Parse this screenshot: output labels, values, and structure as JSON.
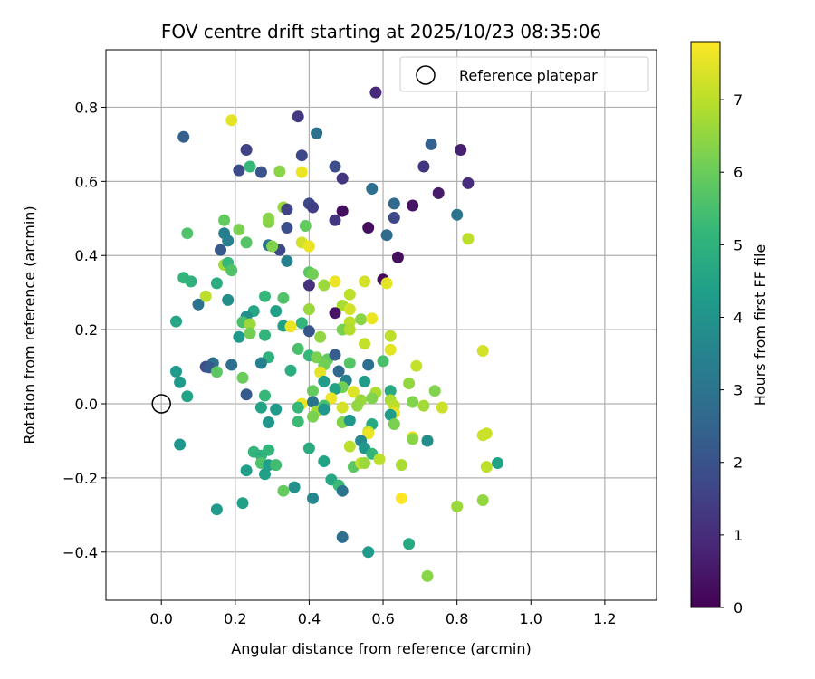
{
  "chart_data": {
    "type": "scatter",
    "title": "FOV centre drift starting at 2025/10/23 08:35:06",
    "xlabel": "Angular distance from reference (arcmin)",
    "ylabel": "Rotation from reference (arcmin)",
    "xlim": [
      -0.15,
      1.34
    ],
    "ylim": [
      -0.53,
      0.955
    ],
    "xticks": [
      0.0,
      0.2,
      0.4,
      0.6,
      0.8,
      1.0,
      1.2
    ],
    "xtick_labels": [
      "0.0",
      "0.2",
      "0.4",
      "0.6",
      "0.8",
      "1.0",
      "1.2"
    ],
    "yticks": [
      -0.4,
      -0.2,
      0.0,
      0.2,
      0.4,
      0.6,
      0.8
    ],
    "ytick_labels": [
      "−0.4",
      "−0.2",
      "0.0",
      "0.2",
      "0.4",
      "0.6",
      "0.8"
    ],
    "grid": true,
    "legend": {
      "position": "top-right",
      "entries": [
        {
          "label": "Reference platepar",
          "marker": "hollow-circle"
        }
      ]
    },
    "reference_point": {
      "x": 0.0,
      "y": 0.0
    },
    "colorbar": {
      "label": "Hours from first FF file",
      "range": [
        0,
        7.8
      ],
      "ticks": [
        0,
        1,
        2,
        3,
        4,
        5,
        6,
        7
      ],
      "tick_labels": [
        "0",
        "1",
        "2",
        "3",
        "4",
        "5",
        "6",
        "7"
      ],
      "colormap": "viridis"
    },
    "colormap_stops": [
      "#440154",
      "#482878",
      "#3e4989",
      "#31688e",
      "#26828e",
      "#1f9e89",
      "#35b779",
      "#6ece58",
      "#b5de2b",
      "#fde725"
    ],
    "points": [
      [
        0.58,
        0.84,
        0.9
      ],
      [
        0.37,
        0.775,
        1.3
      ],
      [
        0.06,
        0.72,
        2.4
      ],
      [
        0.42,
        0.73,
        2.9
      ],
      [
        0.19,
        0.765,
        7.5
      ],
      [
        0.23,
        0.685,
        1.6
      ],
      [
        0.38,
        0.67,
        1.7
      ],
      [
        0.73,
        0.7,
        2.4
      ],
      [
        0.81,
        0.685,
        0.7
      ],
      [
        0.71,
        0.64,
        1.2
      ],
      [
        0.47,
        0.64,
        1.9
      ],
      [
        0.24,
        0.64,
        5.2
      ],
      [
        0.21,
        0.63,
        1.8
      ],
      [
        0.27,
        0.625,
        2.0
      ],
      [
        0.32,
        0.627,
        6.4
      ],
      [
        0.38,
        0.625,
        7.6
      ],
      [
        0.49,
        0.608,
        1.2
      ],
      [
        0.83,
        0.595,
        1.0
      ],
      [
        0.57,
        0.58,
        2.8
      ],
      [
        0.75,
        0.568,
        0.6
      ],
      [
        0.4,
        0.54,
        1.7
      ],
      [
        0.41,
        0.53,
        1.5
      ],
      [
        0.63,
        0.54,
        2.6
      ],
      [
        0.33,
        0.53,
        6.6
      ],
      [
        0.34,
        0.525,
        1.6
      ],
      [
        0.68,
        0.535,
        0.4
      ],
      [
        0.49,
        0.52,
        0.3
      ],
      [
        0.8,
        0.51,
        3.0
      ],
      [
        0.63,
        0.502,
        1.7
      ],
      [
        0.17,
        0.495,
        5.9
      ],
      [
        0.29,
        0.49,
        6.3
      ],
      [
        0.34,
        0.475,
        1.9
      ],
      [
        0.47,
        0.495,
        1.2
      ],
      [
        0.56,
        0.475,
        0.3
      ],
      [
        0.39,
        0.48,
        5.9
      ],
      [
        0.29,
        0.5,
        6.4
      ],
      [
        0.07,
        0.46,
        5.6
      ],
      [
        0.17,
        0.46,
        3.3
      ],
      [
        0.21,
        0.47,
        6.2
      ],
      [
        0.61,
        0.455,
        2.7
      ],
      [
        0.83,
        0.445,
        7.0
      ],
      [
        0.18,
        0.44,
        3.4
      ],
      [
        0.23,
        0.435,
        5.7
      ],
      [
        0.32,
        0.415,
        1.7
      ],
      [
        0.29,
        0.428,
        3.0
      ],
      [
        0.3,
        0.425,
        6.3
      ],
      [
        0.38,
        0.435,
        7.3
      ],
      [
        0.4,
        0.425,
        7.6
      ],
      [
        0.64,
        0.395,
        0.3
      ],
      [
        0.34,
        0.385,
        3.4
      ],
      [
        0.16,
        0.415,
        2.2
      ],
      [
        0.17,
        0.375,
        6.7
      ],
      [
        0.18,
        0.38,
        5.2
      ],
      [
        0.19,
        0.36,
        5.6
      ],
      [
        0.06,
        0.34,
        5.1
      ],
      [
        0.08,
        0.33,
        5.0
      ],
      [
        0.4,
        0.355,
        5.8
      ],
      [
        0.41,
        0.35,
        6.1
      ],
      [
        0.6,
        0.335,
        0.2
      ],
      [
        0.47,
        0.33,
        7.6
      ],
      [
        0.55,
        0.33,
        7.3
      ],
      [
        0.61,
        0.325,
        7.5
      ],
      [
        0.15,
        0.325,
        4.8
      ],
      [
        0.4,
        0.32,
        1.1
      ],
      [
        0.44,
        0.32,
        6.6
      ],
      [
        0.12,
        0.29,
        7.0
      ],
      [
        0.51,
        0.295,
        7.0
      ],
      [
        0.28,
        0.29,
        5.2
      ],
      [
        0.33,
        0.285,
        5.6
      ],
      [
        0.18,
        0.28,
        3.8
      ],
      [
        0.1,
        0.268,
        3.0
      ],
      [
        0.49,
        0.265,
        6.8
      ],
      [
        0.51,
        0.255,
        7.3
      ],
      [
        0.25,
        0.25,
        4.6
      ],
      [
        0.31,
        0.25,
        4.4
      ],
      [
        0.47,
        0.245,
        0.4
      ],
      [
        0.4,
        0.255,
        6.6
      ],
      [
        0.23,
        0.235,
        3.8
      ],
      [
        0.22,
        0.22,
        5.5
      ],
      [
        0.51,
        0.22,
        7.0
      ],
      [
        0.54,
        0.228,
        6.4
      ],
      [
        0.57,
        0.23,
        7.6
      ],
      [
        0.04,
        0.222,
        4.6
      ],
      [
        0.24,
        0.215,
        6.6
      ],
      [
        0.33,
        0.21,
        4.4
      ],
      [
        0.35,
        0.208,
        7.6
      ],
      [
        0.38,
        0.218,
        5.1
      ],
      [
        0.49,
        0.2,
        6.2
      ],
      [
        0.51,
        0.2,
        6.9
      ],
      [
        0.4,
        0.196,
        2.1
      ],
      [
        0.24,
        0.19,
        6.1
      ],
      [
        0.28,
        0.185,
        5.1
      ],
      [
        0.21,
        0.18,
        4.2
      ],
      [
        0.43,
        0.18,
        6.5
      ],
      [
        0.62,
        0.183,
        7.0
      ],
      [
        0.55,
        0.162,
        7.1
      ],
      [
        0.62,
        0.146,
        7.5
      ],
      [
        0.37,
        0.148,
        5.5
      ],
      [
        0.87,
        0.143,
        7.3
      ],
      [
        0.29,
        0.125,
        5.0
      ],
      [
        0.4,
        0.13,
        5.2
      ],
      [
        0.42,
        0.125,
        6.2
      ],
      [
        0.45,
        0.12,
        5.9
      ],
      [
        0.47,
        0.132,
        2.3
      ],
      [
        0.14,
        0.11,
        2.9
      ],
      [
        0.27,
        0.11,
        3.4
      ],
      [
        0.44,
        0.105,
        6.1
      ],
      [
        0.51,
        0.11,
        5.7
      ],
      [
        0.56,
        0.105,
        2.8
      ],
      [
        0.6,
        0.115,
        5.5
      ],
      [
        0.69,
        0.102,
        7.1
      ],
      [
        0.19,
        0.105,
        2.9
      ],
      [
        0.12,
        0.1,
        1.9
      ],
      [
        0.13,
        0.098,
        2.2
      ],
      [
        0.35,
        0.09,
        4.9
      ],
      [
        0.43,
        0.085,
        7.5
      ],
      [
        0.48,
        0.088,
        2.6
      ],
      [
        0.04,
        0.087,
        4.2
      ],
      [
        0.15,
        0.086,
        5.8
      ],
      [
        0.22,
        0.07,
        6.0
      ],
      [
        0.44,
        0.06,
        4.3
      ],
      [
        0.5,
        0.063,
        3.5
      ],
      [
        0.55,
        0.06,
        4.3
      ],
      [
        0.67,
        0.055,
        6.5
      ],
      [
        0.05,
        0.058,
        4.2
      ],
      [
        0.49,
        0.045,
        6.1
      ],
      [
        0.58,
        0.03,
        6.8
      ],
      [
        0.52,
        0.032,
        7.4
      ],
      [
        0.41,
        0.035,
        5.9
      ],
      [
        0.47,
        0.04,
        4.5
      ],
      [
        0.62,
        0.035,
        4.7
      ],
      [
        0.74,
        0.035,
        6.3
      ],
      [
        0.07,
        0.02,
        4.5
      ],
      [
        0.23,
        0.025,
        2.2
      ],
      [
        0.28,
        0.022,
        5.2
      ],
      [
        0.46,
        0.015,
        7.6
      ],
      [
        0.54,
        0.01,
        6.6
      ],
      [
        0.57,
        0.015,
        6.3
      ],
      [
        0.62,
        0.01,
        6.8
      ],
      [
        0.68,
        0.005,
        6.3
      ],
      [
        0.38,
        0.0,
        7.6
      ],
      [
        0.41,
        0.005,
        3.0
      ],
      [
        0.44,
        -0.005,
        5.5
      ],
      [
        0.49,
        -0.01,
        7.3
      ],
      [
        0.53,
        -0.005,
        6.5
      ],
      [
        0.63,
        -0.005,
        7.0
      ],
      [
        0.71,
        -0.005,
        6.7
      ],
      [
        0.76,
        -0.01,
        7.2
      ],
      [
        0.27,
        -0.01,
        4.5
      ],
      [
        0.31,
        -0.015,
        4.2
      ],
      [
        0.37,
        -0.01,
        5.2
      ],
      [
        0.42,
        -0.02,
        6.7
      ],
      [
        0.44,
        -0.015,
        4.1
      ],
      [
        0.63,
        -0.025,
        7.5
      ],
      [
        0.62,
        -0.03,
        4.3
      ],
      [
        0.41,
        -0.035,
        6.2
      ],
      [
        0.37,
        -0.048,
        5.3
      ],
      [
        0.29,
        -0.05,
        4.1
      ],
      [
        0.49,
        -0.05,
        6.3
      ],
      [
        0.51,
        -0.045,
        4.1
      ],
      [
        0.57,
        -0.055,
        4.7
      ],
      [
        0.63,
        -0.055,
        6.2
      ],
      [
        0.56,
        -0.075,
        6.9
      ],
      [
        0.56,
        -0.08,
        7.6
      ],
      [
        0.68,
        -0.09,
        7.6
      ],
      [
        0.68,
        -0.095,
        6.4
      ],
      [
        0.72,
        -0.1,
        6.2
      ],
      [
        0.72,
        -0.1,
        3.8
      ],
      [
        0.87,
        -0.085,
        7.2
      ],
      [
        0.88,
        -0.08,
        7.2
      ],
      [
        0.05,
        -0.11,
        4.1
      ],
      [
        0.54,
        -0.1,
        3.7
      ],
      [
        0.51,
        -0.115,
        7.0
      ],
      [
        0.55,
        -0.12,
        4.1
      ],
      [
        0.4,
        -0.12,
        4.8
      ],
      [
        0.25,
        -0.13,
        5.1
      ],
      [
        0.27,
        -0.14,
        5.0
      ],
      [
        0.29,
        -0.125,
        5.1
      ],
      [
        0.57,
        -0.135,
        5.1
      ],
      [
        0.59,
        -0.15,
        7.0
      ],
      [
        0.44,
        -0.155,
        4.5
      ],
      [
        0.27,
        -0.16,
        5.6
      ],
      [
        0.29,
        -0.165,
        4.4
      ],
      [
        0.31,
        -0.165,
        5.4
      ],
      [
        0.52,
        -0.17,
        5.8
      ],
      [
        0.54,
        -0.16,
        7.1
      ],
      [
        0.55,
        -0.16,
        6.6
      ],
      [
        0.65,
        -0.165,
        6.8
      ],
      [
        0.88,
        -0.17,
        7.0
      ],
      [
        0.91,
        -0.16,
        4.5
      ],
      [
        0.23,
        -0.18,
        4.3
      ],
      [
        0.28,
        -0.19,
        4.4
      ],
      [
        0.46,
        -0.205,
        4.6
      ],
      [
        0.48,
        -0.22,
        5.3
      ],
      [
        0.49,
        -0.235,
        3.0
      ],
      [
        0.36,
        -0.225,
        3.9
      ],
      [
        0.33,
        -0.235,
        5.9
      ],
      [
        0.41,
        -0.255,
        3.6
      ],
      [
        0.22,
        -0.268,
        4.4
      ],
      [
        0.15,
        -0.285,
        4.2
      ],
      [
        0.65,
        -0.255,
        7.8
      ],
      [
        0.8,
        -0.277,
        6.6
      ],
      [
        0.87,
        -0.26,
        6.5
      ],
      [
        0.49,
        -0.36,
        2.8
      ],
      [
        0.56,
        -0.4,
        4.2
      ],
      [
        0.67,
        -0.378,
        4.7
      ],
      [
        0.72,
        -0.465,
        6.4
      ]
    ]
  }
}
